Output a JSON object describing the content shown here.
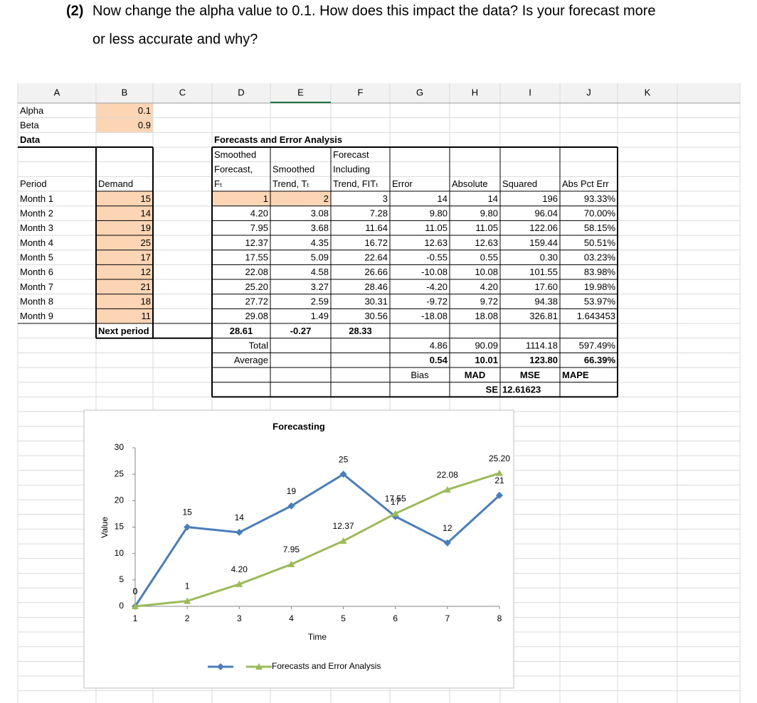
{
  "question": {
    "number": "(2)",
    "lines": [
      "Now change the alpha value to 0.1. How does this impact the data? Is your forecast more",
      "or less accurate and why?"
    ]
  },
  "sheet": {
    "columns": [
      "A",
      "B",
      "C",
      "D",
      "E",
      "F",
      "G",
      "H",
      "I",
      "J",
      "K"
    ],
    "parameters": [
      {
        "label": "Alpha",
        "value": "0.1"
      },
      {
        "label": "Beta",
        "value": "0.9"
      }
    ],
    "data_label": "Data",
    "table_title": "Forecasts and Error Analysis",
    "headers": {
      "forecast": [
        "Smoothed",
        "Forecast,",
        "Fₜ"
      ],
      "trend": [
        "Smoothed",
        "Trend, Tₜ"
      ],
      "fit": [
        "Forecast",
        "Including",
        "Trend, FITₜ"
      ],
      "period": "Period",
      "demand": "Demand",
      "error": "Error",
      "absolute": "Absolute",
      "squared": "Squared",
      "pct": "Abs Pct Err"
    },
    "rows": [
      [
        "Month 1",
        "15",
        "1",
        "2",
        "3",
        "14",
        "14",
        "196",
        "93.33%"
      ],
      [
        "Month 2",
        "14",
        "4.20",
        "3.08",
        "7.28",
        "9.80",
        "9.80",
        "96.04",
        "70.00%"
      ],
      [
        "Month 3",
        "19",
        "7.95",
        "3.68",
        "11.64",
        "11.05",
        "11.05",
        "122.06",
        "58.15%"
      ],
      [
        "Month 4",
        "25",
        "12.37",
        "4.35",
        "16.72",
        "12.63",
        "12.63",
        "159.44",
        "50.51%"
      ],
      [
        "Month 5",
        "17",
        "17.55",
        "5.09",
        "22.64",
        "-0.55",
        "0.55",
        "0.30",
        "03.23%"
      ],
      [
        "Month 6",
        "12",
        "22.08",
        "4.58",
        "26.66",
        "-10.08",
        "10.08",
        "101.55",
        "83.98%"
      ],
      [
        "Month 7",
        "21",
        "25.20",
        "3.27",
        "28.46",
        "-4.20",
        "4.20",
        "17.60",
        "19.98%"
      ],
      [
        "Month 8",
        "18",
        "27.72",
        "2.59",
        "30.31",
        "-9.72",
        "9.72",
        "94.38",
        "53.97%"
      ],
      [
        "Month 9",
        "11",
        "29.08",
        "1.49",
        "30.56",
        "-18.08",
        "18.08",
        "326.81",
        "1.643453"
      ]
    ],
    "next_period": [
      "Next period",
      "28.61",
      "-0.27",
      "28.33"
    ],
    "total": [
      "Total",
      "4.86",
      "90.09",
      "1114.18",
      "597.49%"
    ],
    "average": [
      "Average",
      "0.54",
      "10.01",
      "123.80",
      "66.39%"
    ],
    "measures": [
      "Bias",
      "MAD",
      "MSE",
      "MAPE"
    ],
    "se": [
      "SE",
      "12.61623"
    ]
  },
  "chart_data": {
    "type": "line",
    "title": "Forecasting",
    "x_label": "Time",
    "y_label": "Value",
    "x": [
      1,
      2,
      3,
      4,
      5,
      6,
      7,
      8
    ],
    "xlim": [
      1,
      8
    ],
    "xticks": [
      1,
      2,
      3,
      4,
      5,
      6,
      7,
      8
    ],
    "ylim": [
      0,
      30
    ],
    "yticks": [
      0,
      5,
      10,
      15,
      20,
      25,
      30
    ],
    "series": [
      {
        "color": "#4a7ebb",
        "marker": "diamond",
        "values": [
          0,
          15,
          14,
          19,
          25,
          17,
          12,
          21
        ]
      },
      {
        "name": "Forecasts and Error Analysis",
        "color": "#9bbb59",
        "marker": "triangle",
        "values": [
          0,
          1,
          4.2,
          7.95,
          12.37,
          17.55,
          22.08,
          25.2
        ],
        "value_labels": [
          "0",
          "1",
          "4.20",
          "7.95",
          "12.37",
          "17.55",
          "22.08",
          "25.20"
        ]
      }
    ]
  }
}
